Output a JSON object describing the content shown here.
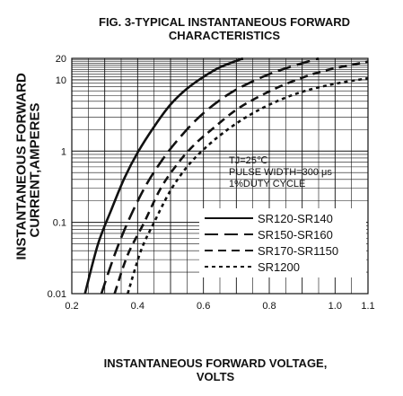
{
  "title_line1": "FIG. 3-TYPICAL INSTANTANEOUS FORWARD",
  "title_line2": "CHARACTERISTICS",
  "xlabel_line1": "INSTANTANEOUS FORWARD VOLTAGE,",
  "xlabel_line2": "VOLTS",
  "ylabel_line1": "INSTANTANEOUS FORWARD",
  "ylabel_line2": "CURRENT,AMPERES",
  "annotation": [
    "TJ=25℃",
    "PULSE WIDTH=300 μs",
    "1%DUTY CYCLE"
  ],
  "chart_data": {
    "type": "line",
    "xlim": [
      0.2,
      1.1
    ],
    "ylim": [
      0.01,
      20
    ],
    "y_scale": "log",
    "grid": true,
    "x_ticks": [
      {
        "value": 0.2,
        "label": "0.2"
      },
      {
        "value": 0.4,
        "label": "0.4"
      },
      {
        "value": 0.6,
        "label": "0.6"
      },
      {
        "value": 0.8,
        "label": "0.8"
      },
      {
        "value": 1.0,
        "label": "1.0"
      },
      {
        "value": 1.1,
        "label": "1.1"
      }
    ],
    "y_ticks": [
      {
        "value": 0.01,
        "label": "0.01"
      },
      {
        "value": 0.1,
        "label": "0.1"
      },
      {
        "value": 1,
        "label": "1"
      },
      {
        "value": 10,
        "label": "10"
      },
      {
        "value": 20,
        "label": "20"
      }
    ],
    "legend_position": "bottom-right",
    "series": [
      {
        "name": "SR120-SR140",
        "dash": "solid",
        "x": [
          0.24,
          0.28,
          0.32,
          0.36,
          0.4,
          0.45,
          0.5,
          0.55,
          0.6,
          0.65,
          0.72
        ],
        "y": [
          0.01,
          0.05,
          0.15,
          0.42,
          0.95,
          2.2,
          4.5,
          7.5,
          11,
          15,
          20
        ]
      },
      {
        "name": "SR150-SR160",
        "dash": "long",
        "x": [
          0.29,
          0.33,
          0.37,
          0.42,
          0.47,
          0.52,
          0.58,
          0.64,
          0.7,
          0.78,
          0.85,
          0.95
        ],
        "y": [
          0.01,
          0.035,
          0.1,
          0.3,
          0.7,
          1.4,
          2.8,
          4.8,
          7.3,
          11,
          14.5,
          20
        ]
      },
      {
        "name": "SR170-SR1150",
        "dash": "medium",
        "x": [
          0.33,
          0.37,
          0.42,
          0.47,
          0.52,
          0.57,
          0.63,
          0.7,
          0.78,
          0.87,
          0.97,
          1.1
        ],
        "y": [
          0.01,
          0.035,
          0.1,
          0.3,
          0.65,
          1.2,
          2.1,
          3.8,
          6.2,
          9.5,
          13.5,
          18
        ]
      },
      {
        "name": "SR1200",
        "dash": "short",
        "x": [
          0.37,
          0.41,
          0.45,
          0.5,
          0.55,
          0.6,
          0.66,
          0.73,
          0.81,
          0.9,
          1.0,
          1.1
        ],
        "y": [
          0.01,
          0.04,
          0.1,
          0.28,
          0.6,
          1.05,
          1.8,
          3.0,
          4.7,
          6.8,
          8.8,
          10.5
        ]
      }
    ]
  }
}
